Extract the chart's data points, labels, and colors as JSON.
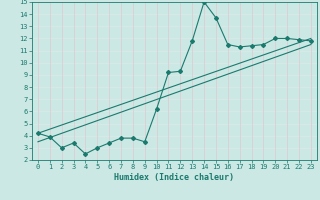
{
  "xlabel": "Humidex (Indice chaleur)",
  "xlim": [
    -0.5,
    23.5
  ],
  "ylim": [
    2,
    15
  ],
  "xticks": [
    0,
    1,
    2,
    3,
    4,
    5,
    6,
    7,
    8,
    9,
    10,
    11,
    12,
    13,
    14,
    15,
    16,
    17,
    18,
    19,
    20,
    21,
    22,
    23
  ],
  "yticks": [
    2,
    3,
    4,
    5,
    6,
    7,
    8,
    9,
    10,
    11,
    12,
    13,
    14,
    15
  ],
  "bg_color": "#cce8e4",
  "line_color": "#1a7a6e",
  "grid_h_color": "#dde8e8",
  "grid_v_color": "#e0c8cc",
  "data_x": [
    0,
    1,
    2,
    3,
    4,
    5,
    6,
    7,
    8,
    9,
    10,
    11,
    12,
    13,
    14,
    15,
    16,
    17,
    18,
    19,
    20,
    21,
    22,
    23
  ],
  "data_y": [
    4.2,
    3.9,
    3.0,
    3.4,
    2.5,
    3.0,
    3.4,
    3.8,
    3.8,
    3.5,
    6.2,
    9.2,
    9.3,
    11.8,
    15.0,
    13.7,
    11.5,
    11.3,
    11.4,
    11.5,
    12.0,
    12.0,
    11.9,
    11.8
  ],
  "trend1_x": [
    0,
    23
  ],
  "trend1_y": [
    3.5,
    11.5
  ],
  "trend2_x": [
    0,
    23
  ],
  "trend2_y": [
    4.2,
    12.0
  ]
}
